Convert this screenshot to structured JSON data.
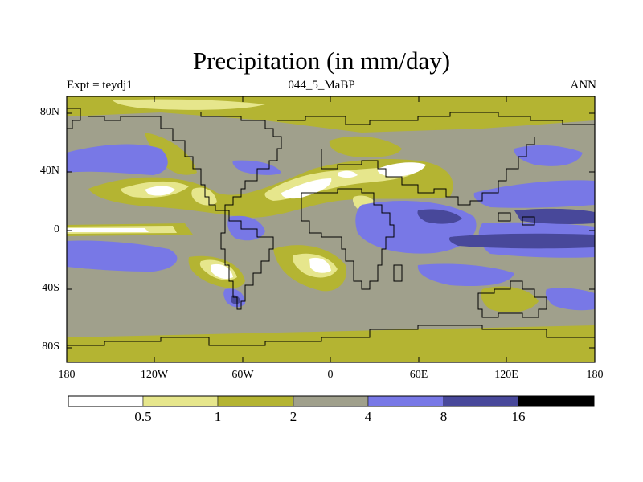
{
  "title": "Precipitation (in mm/day)",
  "subtitle_left": "Expt = teydj1",
  "subtitle_center": "044_5_MaBP",
  "subtitle_right": "ANN",
  "y_axis_labels": [
    "80N",
    "40N",
    "0",
    "40S",
    "80S"
  ],
  "x_axis_labels": [
    "180",
    "120W",
    "60W",
    "0",
    "60E",
    "120E",
    "180"
  ],
  "colorbar": {
    "thresholds": [
      "0.5",
      "1",
      "2",
      "4",
      "8",
      "16"
    ],
    "colors": [
      "#ffffff",
      "#e6e68c",
      "#b4b432",
      "#a0a08c",
      "#7878e6",
      "#48489a",
      "#000000"
    ]
  },
  "palette": {
    "white": "#ffffff",
    "light": "#e6e68c",
    "olive": "#b4b432",
    "gray": "#a0a08c",
    "blue": "#7878e6",
    "dark": "#48489a"
  }
}
